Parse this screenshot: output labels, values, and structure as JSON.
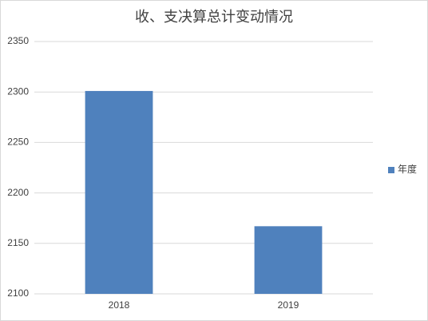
{
  "chart_data": {
    "type": "bar",
    "title": "收、支决算总计变动情况",
    "categories": [
      "2018",
      "2019"
    ],
    "series": [
      {
        "name": "年度",
        "color": "#4f81bd",
        "values": [
          2301,
          2167
        ]
      }
    ],
    "ylim": [
      2100,
      2350
    ],
    "yticks": [
      2100,
      2150,
      2200,
      2250,
      2300,
      2350
    ],
    "grid": true,
    "legend": "right"
  }
}
